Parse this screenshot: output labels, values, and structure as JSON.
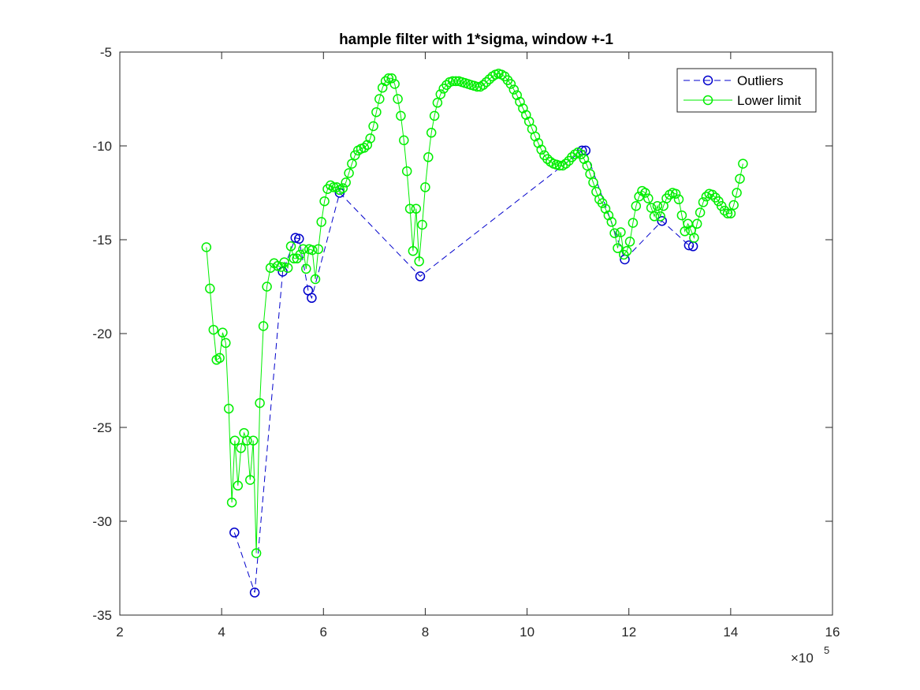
{
  "chart_data": {
    "type": "line",
    "title": "hample filter with 1*sigma, window +-1",
    "xlabel": "",
    "ylabel": "",
    "xlim": [
      200000,
      1600000
    ],
    "ylim": [
      -35,
      -5
    ],
    "x_ticks": [
      2,
      4,
      6,
      8,
      10,
      12,
      14,
      16
    ],
    "y_ticks": [
      -5,
      -10,
      -15,
      -20,
      -25,
      -30,
      -35
    ],
    "x_exponent_base": "×10",
    "x_exponent_power": "5",
    "grid": false,
    "legend_position": "top-right",
    "series": [
      {
        "name": "Outliers",
        "color": "#0000cc",
        "line_style": "dashed",
        "marker": "circle",
        "points": [
          [
            425000,
            -30.6
          ],
          [
            465000,
            -33.8
          ],
          [
            520000,
            -16.7
          ],
          [
            545000,
            -14.9
          ],
          [
            552000,
            -14.95
          ],
          [
            570000,
            -17.7
          ],
          [
            577000,
            -18.1
          ],
          [
            632000,
            -12.5
          ],
          [
            790000,
            -16.95
          ],
          [
            1108000,
            -10.25
          ],
          [
            1115000,
            -10.25
          ],
          [
            1192000,
            -16.05
          ],
          [
            1265000,
            -14.0
          ],
          [
            1318000,
            -15.3
          ],
          [
            1326000,
            -15.35
          ]
        ]
      },
      {
        "name": "Lower limit",
        "color": "#00ee00",
        "line_style": "solid",
        "marker": "circle",
        "points": [
          [
            370000,
            -15.4
          ],
          [
            377000,
            -17.6
          ],
          [
            384000,
            -19.8
          ],
          [
            390000,
            -21.4
          ],
          [
            396000,
            -21.3
          ],
          [
            402000,
            -19.95
          ],
          [
            408000,
            -20.5
          ],
          [
            414000,
            -24.0
          ],
          [
            420000,
            -29.0
          ],
          [
            426000,
            -25.7
          ],
          [
            432000,
            -28.1
          ],
          [
            438000,
            -26.1
          ],
          [
            444000,
            -25.3
          ],
          [
            450000,
            -25.7
          ],
          [
            456000,
            -27.8
          ],
          [
            462000,
            -25.7
          ],
          [
            468000,
            -31.7
          ],
          [
            475000,
            -23.7
          ],
          [
            482000,
            -19.6
          ],
          [
            489000,
            -17.5
          ],
          [
            496000,
            -16.5
          ],
          [
            503000,
            -16.25
          ],
          [
            510000,
            -16.4
          ],
          [
            517000,
            -16.45
          ],
          [
            523000,
            -16.2
          ],
          [
            530000,
            -16.5
          ],
          [
            536000,
            -15.35
          ],
          [
            542000,
            -16.0
          ],
          [
            548000,
            -16.0
          ],
          [
            554000,
            -15.8
          ],
          [
            560000,
            -15.5
          ],
          [
            566000,
            -16.55
          ],
          [
            572000,
            -15.5
          ],
          [
            578000,
            -15.55
          ],
          [
            584000,
            -17.1
          ],
          [
            590000,
            -15.5
          ],
          [
            596000,
            -14.05
          ],
          [
            602000,
            -12.95
          ],
          [
            608000,
            -12.3
          ],
          [
            614000,
            -12.1
          ],
          [
            620000,
            -12.2
          ],
          [
            626000,
            -12.2
          ],
          [
            632000,
            -12.35
          ],
          [
            638000,
            -12.25
          ],
          [
            644000,
            -11.95
          ],
          [
            650000,
            -11.45
          ],
          [
            656000,
            -10.95
          ],
          [
            662000,
            -10.5
          ],
          [
            668000,
            -10.25
          ],
          [
            674000,
            -10.15
          ],
          [
            680000,
            -10.1
          ],
          [
            686000,
            -9.95
          ],
          [
            692000,
            -9.6
          ],
          [
            698000,
            -8.95
          ],
          [
            704000,
            -8.2
          ],
          [
            710000,
            -7.5
          ],
          [
            716000,
            -6.9
          ],
          [
            722000,
            -6.55
          ],
          [
            728000,
            -6.4
          ],
          [
            734000,
            -6.4
          ],
          [
            740000,
            -6.7
          ],
          [
            746000,
            -7.5
          ],
          [
            752000,
            -8.4
          ],
          [
            758000,
            -9.7
          ],
          [
            764000,
            -11.35
          ],
          [
            770000,
            -13.35
          ],
          [
            776000,
            -15.6
          ],
          [
            782000,
            -13.35
          ],
          [
            788000,
            -16.15
          ],
          [
            794000,
            -14.2
          ],
          [
            800000,
            -12.2
          ],
          [
            806000,
            -10.6
          ],
          [
            812000,
            -9.3
          ],
          [
            818000,
            -8.4
          ],
          [
            824000,
            -7.7
          ],
          [
            830000,
            -7.25
          ],
          [
            836000,
            -6.95
          ],
          [
            842000,
            -6.75
          ],
          [
            848000,
            -6.6
          ],
          [
            854000,
            -6.55
          ],
          [
            860000,
            -6.55
          ],
          [
            866000,
            -6.55
          ],
          [
            872000,
            -6.6
          ],
          [
            878000,
            -6.65
          ],
          [
            884000,
            -6.7
          ],
          [
            890000,
            -6.75
          ],
          [
            896000,
            -6.8
          ],
          [
            902000,
            -6.85
          ],
          [
            908000,
            -6.85
          ],
          [
            914000,
            -6.75
          ],
          [
            920000,
            -6.6
          ],
          [
            926000,
            -6.45
          ],
          [
            932000,
            -6.3
          ],
          [
            938000,
            -6.2
          ],
          [
            944000,
            -6.15
          ],
          [
            950000,
            -6.2
          ],
          [
            956000,
            -6.3
          ],
          [
            962000,
            -6.5
          ],
          [
            968000,
            -6.7
          ],
          [
            974000,
            -7.0
          ],
          [
            980000,
            -7.3
          ],
          [
            986000,
            -7.65
          ],
          [
            992000,
            -8.0
          ],
          [
            998000,
            -8.35
          ],
          [
            1004000,
            -8.7
          ],
          [
            1010000,
            -9.1
          ],
          [
            1016000,
            -9.5
          ],
          [
            1022000,
            -9.85
          ],
          [
            1028000,
            -10.2
          ],
          [
            1034000,
            -10.5
          ],
          [
            1040000,
            -10.7
          ],
          [
            1046000,
            -10.85
          ],
          [
            1052000,
            -10.95
          ],
          [
            1058000,
            -11.0
          ],
          [
            1064000,
            -11.05
          ],
          [
            1070000,
            -11.05
          ],
          [
            1076000,
            -10.95
          ],
          [
            1082000,
            -10.8
          ],
          [
            1088000,
            -10.6
          ],
          [
            1094000,
            -10.45
          ],
          [
            1100000,
            -10.35
          ],
          [
            1106000,
            -10.45
          ],
          [
            1112000,
            -10.7
          ],
          [
            1118000,
            -11.05
          ],
          [
            1124000,
            -11.5
          ],
          [
            1130000,
            -11.95
          ],
          [
            1136000,
            -12.45
          ],
          [
            1142000,
            -12.85
          ],
          [
            1148000,
            -13.05
          ],
          [
            1154000,
            -13.35
          ],
          [
            1160000,
            -13.7
          ],
          [
            1166000,
            -14.05
          ],
          [
            1172000,
            -14.65
          ],
          [
            1178000,
            -15.45
          ],
          [
            1184000,
            -14.6
          ],
          [
            1190000,
            -15.8
          ],
          [
            1196000,
            -15.6
          ],
          [
            1202000,
            -15.1
          ],
          [
            1208000,
            -14.1
          ],
          [
            1214000,
            -13.2
          ],
          [
            1220000,
            -12.7
          ],
          [
            1226000,
            -12.4
          ],
          [
            1232000,
            -12.5
          ],
          [
            1238000,
            -12.8
          ],
          [
            1244000,
            -13.3
          ],
          [
            1250000,
            -13.75
          ],
          [
            1256000,
            -13.2
          ],
          [
            1262000,
            -13.75
          ],
          [
            1268000,
            -13.2
          ],
          [
            1274000,
            -12.8
          ],
          [
            1280000,
            -12.6
          ],
          [
            1286000,
            -12.5
          ],
          [
            1292000,
            -12.55
          ],
          [
            1298000,
            -12.85
          ],
          [
            1304000,
            -13.7
          ],
          [
            1310000,
            -14.55
          ],
          [
            1316000,
            -14.15
          ],
          [
            1322000,
            -14.5
          ],
          [
            1328000,
            -14.9
          ],
          [
            1334000,
            -14.15
          ],
          [
            1340000,
            -13.55
          ],
          [
            1346000,
            -13.0
          ],
          [
            1352000,
            -12.7
          ],
          [
            1358000,
            -12.55
          ],
          [
            1364000,
            -12.6
          ],
          [
            1370000,
            -12.75
          ],
          [
            1376000,
            -12.95
          ],
          [
            1382000,
            -13.2
          ],
          [
            1388000,
            -13.45
          ],
          [
            1394000,
            -13.6
          ],
          [
            1400000,
            -13.6
          ],
          [
            1406000,
            -13.15
          ],
          [
            1412000,
            -12.5
          ],
          [
            1418000,
            -11.75
          ],
          [
            1424000,
            -10.95
          ]
        ]
      }
    ]
  }
}
